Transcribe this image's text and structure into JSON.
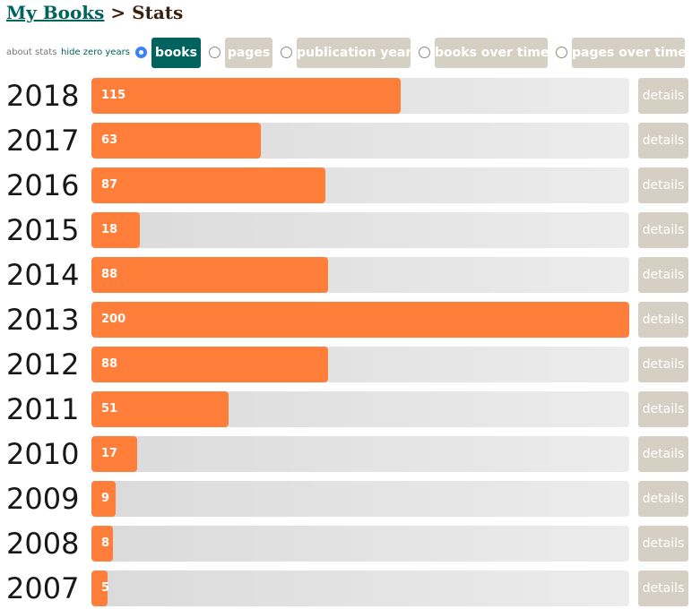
{
  "breadcrumb": {
    "home": "My Books",
    "separator": ">",
    "current": "Stats"
  },
  "controls": {
    "about": "about stats",
    "hide_zero": "hide zero years"
  },
  "modes": [
    {
      "label": "books",
      "checked": true
    },
    {
      "label": "pages",
      "checked": false
    },
    {
      "label": "publication year",
      "checked": false
    },
    {
      "label": "books over time",
      "checked": false
    },
    {
      "label": "pages over time",
      "checked": false
    }
  ],
  "details_label": "details",
  "chart_data": {
    "type": "bar",
    "orientation": "horizontal",
    "categories": [
      "2018",
      "2017",
      "2016",
      "2015",
      "2014",
      "2013",
      "2012",
      "2011",
      "2010",
      "2009",
      "2008",
      "2007"
    ],
    "values": [
      115,
      63,
      87,
      18,
      88,
      200,
      88,
      51,
      17,
      9,
      8,
      5
    ],
    "xlim": [
      0,
      200
    ],
    "colors": {
      "bar": "#ff7f3a",
      "track": "#e2e2e2",
      "active_tab": "#00635d",
      "inactive": "#d6d0c4"
    }
  }
}
